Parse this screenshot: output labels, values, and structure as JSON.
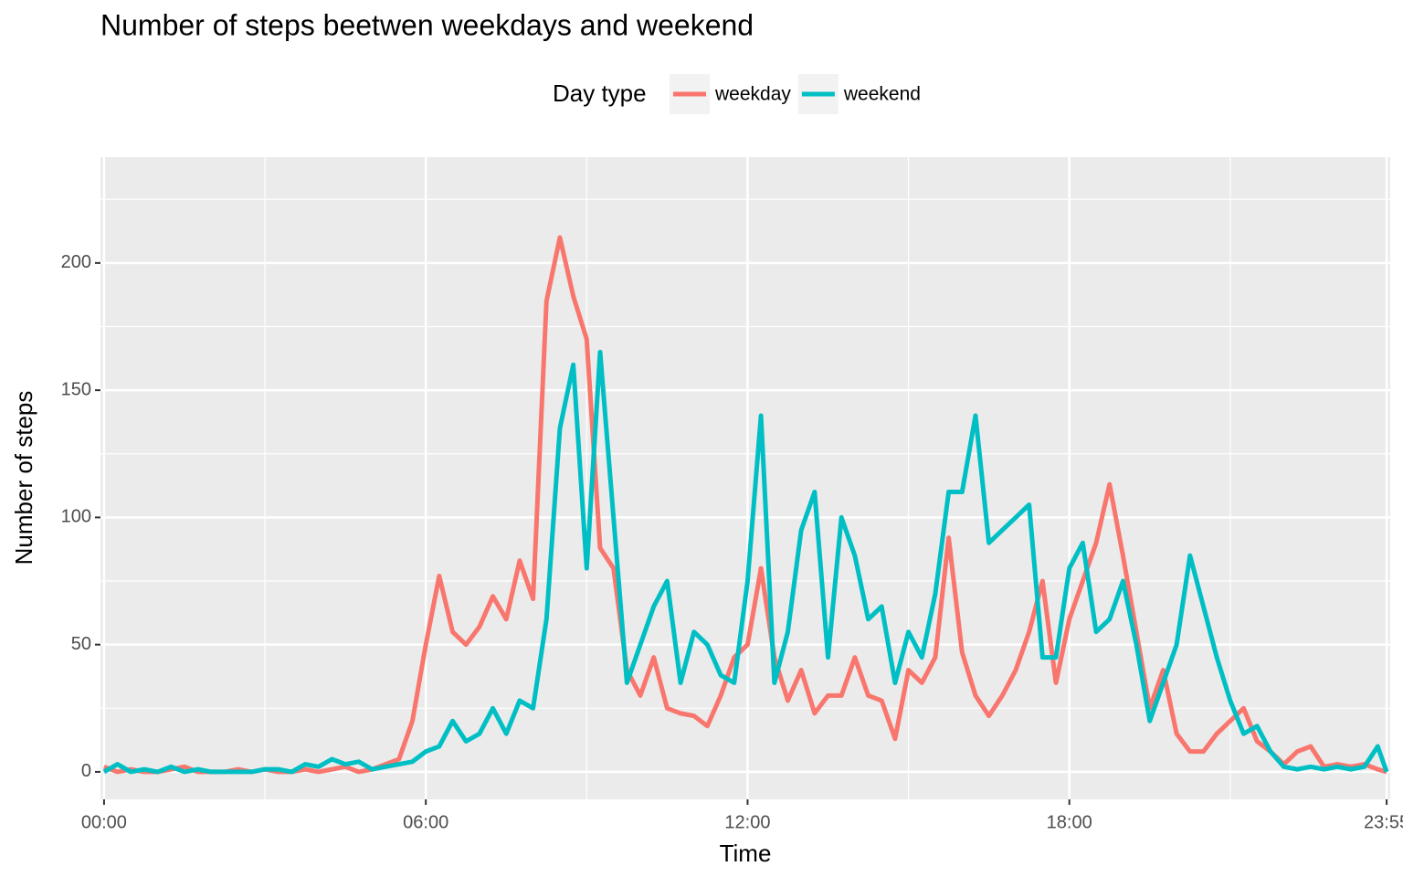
{
  "chart_data": {
    "type": "line",
    "title": "Number of steps beetwen weekdays and weekend",
    "x_label": "Time",
    "y_label": "Number of steps",
    "legend_title": "Day type",
    "x": [
      0,
      15,
      30,
      45,
      60,
      75,
      90,
      105,
      120,
      135,
      150,
      165,
      180,
      195,
      210,
      225,
      240,
      255,
      270,
      285,
      300,
      315,
      330,
      345,
      360,
      375,
      390,
      405,
      420,
      435,
      450,
      465,
      480,
      495,
      510,
      525,
      540,
      555,
      570,
      585,
      600,
      615,
      630,
      645,
      660,
      675,
      690,
      705,
      720,
      735,
      750,
      765,
      780,
      795,
      810,
      825,
      840,
      855,
      870,
      885,
      900,
      915,
      930,
      945,
      960,
      975,
      990,
      1005,
      1020,
      1035,
      1050,
      1065,
      1080,
      1095,
      1110,
      1125,
      1140,
      1155,
      1170,
      1185,
      1200,
      1215,
      1230,
      1245,
      1260,
      1275,
      1290,
      1305,
      1320,
      1335,
      1350,
      1365,
      1380,
      1395,
      1410,
      1425,
      1435
    ],
    "series": [
      {
        "name": "weekday",
        "color": "#f8766d",
        "values": [
          2,
          0,
          1,
          0,
          0,
          1,
          2,
          0,
          0,
          0,
          1,
          0,
          1,
          0,
          0,
          1,
          0,
          1,
          2,
          0,
          1,
          3,
          5,
          20,
          50,
          77,
          55,
          50,
          57,
          69,
          60,
          83,
          68,
          185,
          210,
          187,
          170,
          88,
          80,
          40,
          30,
          45,
          25,
          23,
          22,
          18,
          30,
          45,
          50,
          80,
          45,
          28,
          40,
          23,
          30,
          30,
          45,
          30,
          28,
          13,
          40,
          35,
          45,
          92,
          47,
          30,
          22,
          30,
          40,
          55,
          75,
          35,
          60,
          75,
          90,
          113,
          85,
          55,
          25,
          40,
          15,
          8,
          8,
          15,
          20,
          25,
          12,
          8,
          3,
          8,
          10,
          2,
          3,
          2,
          3,
          1,
          0
        ]
      },
      {
        "name": "weekend",
        "color": "#00bfc4",
        "values": [
          0,
          3,
          0,
          1,
          0,
          2,
          0,
          1,
          0,
          0,
          0,
          0,
          1,
          1,
          0,
          3,
          2,
          5,
          3,
          4,
          1,
          2,
          3,
          4,
          8,
          10,
          20,
          12,
          15,
          25,
          15,
          28,
          25,
          60,
          135,
          160,
          80,
          165,
          100,
          35,
          50,
          65,
          75,
          35,
          55,
          50,
          38,
          35,
          75,
          140,
          35,
          55,
          95,
          110,
          45,
          100,
          85,
          60,
          65,
          35,
          55,
          45,
          70,
          110,
          110,
          140,
          90,
          95,
          100,
          105,
          45,
          45,
          80,
          90,
          55,
          60,
          75,
          50,
          20,
          35,
          50,
          85,
          65,
          45,
          28,
          15,
          18,
          8,
          2,
          1,
          2,
          1,
          2,
          1,
          2,
          10,
          0
        ]
      }
    ],
    "xlim": [
      -4,
      1439
    ],
    "ylim": [
      -10.8,
      241.6
    ],
    "xticks": [
      {
        "value": 0,
        "label": "00:00"
      },
      {
        "value": 360,
        "label": "06:00"
      },
      {
        "value": 720,
        "label": "12:00"
      },
      {
        "value": 1080,
        "label": "18:00"
      },
      {
        "value": 1435,
        "label": "23:55"
      }
    ],
    "yticks": [
      0,
      50,
      100,
      150,
      200
    ],
    "minor_xticks": [
      180,
      540,
      900,
      1260
    ],
    "minor_yticks": [
      25,
      75,
      125,
      175,
      225
    ],
    "grid": true
  }
}
